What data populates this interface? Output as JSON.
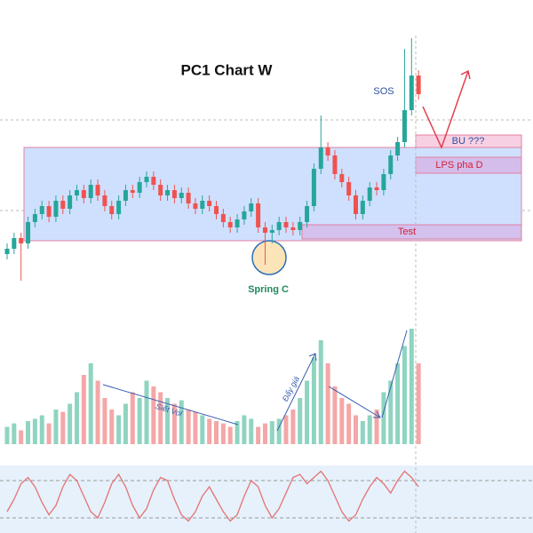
{
  "chart_data": [
    {
      "type": "candlestick",
      "title": "PC1 Chart W",
      "up_color": "#26a69a",
      "down_color": "#ef5350",
      "ylim": [
        0,
        100
      ],
      "open": [
        18,
        20,
        24,
        22,
        30,
        33,
        36,
        32,
        38,
        35,
        40,
        42,
        39,
        44,
        40,
        36,
        33,
        38,
        42,
        41,
        45,
        47,
        44,
        40,
        42,
        39,
        41,
        37,
        35,
        38,
        36,
        33,
        30,
        28,
        31,
        34,
        37,
        28,
        26,
        27,
        30,
        28,
        27,
        30,
        36,
        50,
        58,
        55,
        48,
        45,
        40,
        33,
        38,
        43,
        42,
        48,
        55,
        60,
        72,
        85
      ],
      "high": [
        22,
        26,
        26,
        32,
        35,
        38,
        38,
        40,
        40,
        42,
        44,
        44,
        46,
        46,
        42,
        38,
        40,
        44,
        44,
        47,
        49,
        49,
        46,
        44,
        44,
        43,
        43,
        39,
        40,
        40,
        38,
        35,
        32,
        33,
        36,
        39,
        39,
        30,
        29,
        32,
        32,
        30,
        32,
        38,
        52,
        70,
        60,
        57,
        50,
        47,
        42,
        40,
        45,
        45,
        50,
        57,
        62,
        95,
        99,
        87
      ],
      "low": [
        16,
        18,
        8,
        20,
        28,
        31,
        30,
        30,
        33,
        33,
        38,
        37,
        37,
        38,
        34,
        31,
        31,
        36,
        39,
        39,
        43,
        42,
        38,
        38,
        37,
        37,
        35,
        33,
        33,
        34,
        31,
        28,
        26,
        26,
        29,
        32,
        26,
        14,
        22,
        25,
        26,
        25,
        25,
        28,
        34,
        48,
        53,
        46,
        43,
        38,
        31,
        31,
        36,
        40,
        40,
        46,
        53,
        58,
        70,
        76
      ],
      "close": [
        20,
        24,
        22,
        30,
        33,
        36,
        32,
        38,
        35,
        40,
        42,
        39,
        44,
        40,
        36,
        33,
        38,
        42,
        41,
        45,
        47,
        44,
        40,
        42,
        39,
        41,
        37,
        35,
        38,
        36,
        33,
        30,
        28,
        31,
        34,
        37,
        28,
        26,
        27,
        30,
        28,
        27,
        30,
        36,
        50,
        58,
        55,
        48,
        45,
        40,
        33,
        38,
        43,
        42,
        48,
        55,
        60,
        72,
        85,
        78
      ],
      "annotations": [
        "SOS",
        "BU ???",
        "LPS pha D",
        "Test",
        "Spring C"
      ]
    },
    {
      "type": "bar",
      "ylim": [
        0,
        100
      ],
      "values": [
        15,
        18,
        12,
        20,
        22,
        25,
        18,
        30,
        28,
        35,
        45,
        60,
        70,
        55,
        40,
        30,
        25,
        35,
        45,
        40,
        55,
        50,
        45,
        40,
        35,
        38,
        30,
        28,
        25,
        22,
        20,
        18,
        15,
        20,
        25,
        22,
        15,
        18,
        20,
        22,
        25,
        30,
        40,
        55,
        75,
        90,
        70,
        50,
        40,
        35,
        25,
        20,
        25,
        30,
        45,
        55,
        70,
        85,
        100,
        70
      ],
      "annotations": [
        "Siết Vol",
        "Đẩy giá"
      ]
    },
    {
      "type": "line",
      "color": "#e57373",
      "ylim": [
        0,
        100
      ],
      "guides": [
        20,
        80
      ],
      "values": [
        30,
        50,
        75,
        85,
        70,
        45,
        25,
        40,
        70,
        90,
        80,
        55,
        30,
        20,
        45,
        75,
        90,
        70,
        40,
        20,
        35,
        65,
        85,
        80,
        50,
        25,
        15,
        30,
        55,
        70,
        50,
        30,
        15,
        25,
        55,
        80,
        70,
        40,
        20,
        35,
        60,
        85,
        90,
        75,
        85,
        95,
        80,
        55,
        30,
        15,
        25,
        50,
        70,
        85,
        75,
        60,
        80,
        95,
        85,
        70
      ]
    }
  ]
}
